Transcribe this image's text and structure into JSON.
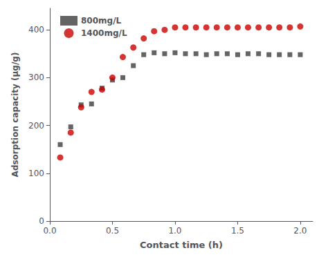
{
  "chart_data": {
    "type": "scatter",
    "xlabel": "Contact time (h)",
    "ylabel": "Adsorption capacity (μg/g)",
    "series": [
      {
        "name": "800mg/L",
        "color": "#3d3d3d",
        "marker": "square",
        "x": [
          0.083,
          0.167,
          0.25,
          0.333,
          0.417,
          0.5,
          0.583,
          0.667,
          0.75,
          0.833,
          0.917,
          1.0,
          1.083,
          1.167,
          1.25,
          1.333,
          1.417,
          1.5,
          1.583,
          1.667,
          1.75,
          1.833,
          1.917,
          2.0
        ],
        "values": [
          160,
          197,
          243,
          245,
          278,
          295,
          300,
          325,
          348,
          352,
          350,
          352,
          350,
          350,
          348,
          350,
          350,
          348,
          350,
          350,
          348,
          348,
          348,
          348
        ]
      },
      {
        "name": "1400mg/L",
        "color": "#cc0000",
        "marker": "circle",
        "x": [
          0.083,
          0.167,
          0.25,
          0.333,
          0.417,
          0.5,
          0.583,
          0.667,
          0.75,
          0.833,
          0.917,
          1.0,
          1.083,
          1.167,
          1.25,
          1.333,
          1.417,
          1.5,
          1.583,
          1.667,
          1.75,
          1.833,
          1.917,
          2.0
        ],
        "values": [
          133,
          185,
          238,
          270,
          275,
          300,
          343,
          363,
          382,
          397,
          400,
          405,
          405,
          405,
          405,
          405,
          405,
          405,
          405,
          405,
          405,
          405,
          405,
          407
        ]
      }
    ],
    "xlim": [
      0.0,
      2.1
    ],
    "ylim": [
      0,
      445
    ],
    "xticks": [
      {
        "value": 0.0,
        "label": "0.0"
      },
      0.5,
      {
        "value": 1.0,
        "label": "1.0"
      },
      1.5,
      {
        "value": 2.0,
        "label": "2.0"
      }
    ],
    "yticks": [
      0,
      100,
      200,
      300,
      400
    ],
    "legend": "upper left",
    "grid": false
  }
}
